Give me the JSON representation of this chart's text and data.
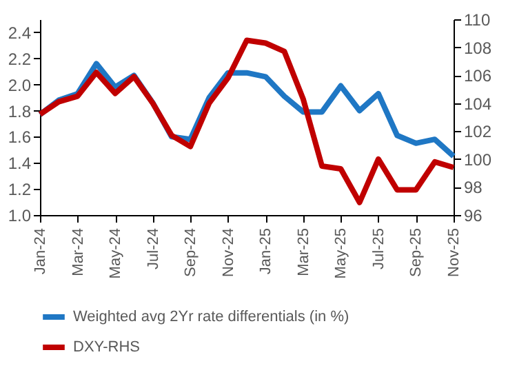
{
  "chart_data": {
    "type": "line",
    "categories": [
      "Jan-24",
      null,
      "Mar-24",
      null,
      "May-24",
      null,
      "Jul-24",
      null,
      "Sep-24",
      null,
      "Nov-24",
      null,
      "Jan-25",
      null,
      "Mar-25",
      null,
      "May-25",
      null,
      "Jul-25",
      null,
      "Sep-25",
      null,
      "Nov-25"
    ],
    "series": [
      {
        "name": "Weighted avg 2Yr rate differentials (in %)",
        "color": "#1f77c4",
        "values": [
          1.77,
          1.88,
          1.93,
          2.16,
          1.98,
          2.07,
          1.86,
          1.6,
          1.58,
          1.9,
          2.09,
          2.09,
          2.06,
          1.91,
          1.79,
          1.79,
          1.99,
          1.8,
          1.93,
          1.61,
          1.55,
          1.58,
          1.45
        ]
      },
      {
        "name": "DXY-RHS",
        "color": "#c00000",
        "axis": "y2",
        "values": [
          103.2,
          104.1,
          104.5,
          106.2,
          104.7,
          105.9,
          104.0,
          101.7,
          100.9,
          104.0,
          105.8,
          108.5,
          108.3,
          107.7,
          104.3,
          99.5,
          99.3,
          96.9,
          100.0,
          97.8,
          97.8,
          99.8,
          99.4
        ]
      }
    ],
    "ylim": [
      1.0,
      2.5
    ],
    "yticks": [
      {
        "value": 1,
        "label": "1.0"
      },
      1.2,
      1.4,
      1.6,
      1.8,
      {
        "value": 2,
        "label": "2.0"
      },
      2.2,
      2.4
    ],
    "y2lim": [
      96,
      110
    ],
    "y2ticks": [
      96,
      98,
      100,
      102,
      104,
      106,
      108,
      110
    ],
    "grid": false,
    "legend": "bottom",
    "marker": "none",
    "line_style": "solid"
  }
}
